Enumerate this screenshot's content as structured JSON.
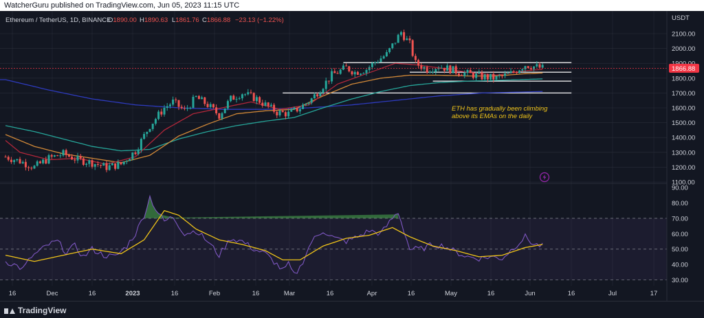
{
  "header": {
    "published_by": "WatcherGuru published on TradingView.com, Jun 05, 2023 11:15 UTC"
  },
  "brand": {
    "name": "TradingView"
  },
  "legend": {
    "symbol": "Ethereum / TetherUS, 1D, BINANCE",
    "O_label": "O",
    "O": "1890.00",
    "H_label": "H",
    "H": "1890.63",
    "L_label": "L",
    "L": "1861.76",
    "C_label": "C",
    "C": "1866.88",
    "change": "−23.13 (−1.22%)"
  },
  "colors": {
    "bg": "#131722",
    "grid": "#2a2e39",
    "text": "#d1d4dc",
    "up": "#26a69a",
    "down": "#ef5350",
    "ema_red": "#b2273a",
    "ema_orange": "#d48a38",
    "ema_teal": "#26a69a",
    "ema_blue": "#2e3bbf",
    "rsi": "#7e57c2",
    "rsi_ma": "#f0c419",
    "annotation": "#f0c419",
    "price_tag": "#f23645",
    "rsi_band": "#7e57c2"
  },
  "chart_data": {
    "type": "candlestick",
    "currency": "USDT",
    "price_axis": {
      "ylim": [
        1100,
        2200
      ],
      "ticks": [
        "2100.00",
        "2000.00",
        "1900.00",
        "1800.00",
        "1700.00",
        "1600.00",
        "1500.00",
        "1400.00",
        "1300.00",
        "1200.00",
        "1100.00"
      ]
    },
    "rsi_axis": {
      "ylim": [
        28,
        90
      ],
      "ticks": [
        "90.00",
        "80.00",
        "70.00",
        "60.00",
        "50.00",
        "40.00",
        "30.00"
      ]
    },
    "last_price": "1866.88",
    "x_ticks": [
      "16",
      "Dec",
      "16",
      "2023",
      "16",
      "Feb",
      "16",
      "Mar",
      "16",
      "Apr",
      "16",
      "May",
      "16",
      "Jun",
      "16",
      "Jul",
      "17"
    ],
    "annotation": [
      "ETH has gradually been climbing",
      "above its EMAs on the daily"
    ],
    "anchors": {
      "close": [
        [
          0,
          1270
        ],
        [
          5,
          1240
        ],
        [
          10,
          1200
        ],
        [
          15,
          1260
        ],
        [
          20,
          1290
        ],
        [
          25,
          1250
        ],
        [
          30,
          1230
        ],
        [
          35,
          1200
        ],
        [
          40,
          1220
        ],
        [
          45,
          1310
        ],
        [
          50,
          1480
        ],
        [
          55,
          1600
        ],
        [
          58,
          1640
        ],
        [
          62,
          1580
        ],
        [
          66,
          1670
        ],
        [
          70,
          1620
        ],
        [
          74,
          1550
        ],
        [
          78,
          1660
        ],
        [
          82,
          1700
        ],
        [
          87,
          1660
        ],
        [
          90,
          1620
        ],
        [
          94,
          1570
        ],
        [
          98,
          1560
        ],
        [
          102,
          1600
        ],
        [
          106,
          1660
        ],
        [
          110,
          1750
        ],
        [
          113,
          1820
        ],
        [
          118,
          1870
        ],
        [
          121,
          1840
        ],
        [
          125,
          1860
        ],
        [
          128,
          1910
        ],
        [
          132,
          1960
        ],
        [
          137,
          2110
        ],
        [
          140,
          2030
        ],
        [
          142,
          1900
        ],
        [
          146,
          1860
        ],
        [
          150,
          1880
        ],
        [
          154,
          1860
        ],
        [
          157,
          1840
        ],
        [
          160,
          1830
        ],
        [
          165,
          1810
        ],
        [
          170,
          1800
        ],
        [
          175,
          1830
        ],
        [
          180,
          1890
        ],
        [
          184,
          1875
        ],
        [
          186,
          1867
        ]
      ],
      "ema_fast": [
        [
          0,
          1380
        ],
        [
          5,
          1300
        ],
        [
          15,
          1250
        ],
        [
          25,
          1260
        ],
        [
          35,
          1220
        ],
        [
          45,
          1270
        ],
        [
          55,
          1450
        ],
        [
          65,
          1560
        ],
        [
          75,
          1600
        ],
        [
          85,
          1640
        ],
        [
          95,
          1590
        ],
        [
          105,
          1620
        ],
        [
          115,
          1760
        ],
        [
          125,
          1830
        ],
        [
          135,
          1900
        ],
        [
          142,
          1890
        ],
        [
          150,
          1870
        ],
        [
          160,
          1840
        ],
        [
          170,
          1820
        ],
        [
          180,
          1850
        ],
        [
          186,
          1860
        ]
      ],
      "ema_mid": [
        [
          0,
          1420
        ],
        [
          10,
          1340
        ],
        [
          20,
          1290
        ],
        [
          30,
          1260
        ],
        [
          40,
          1230
        ],
        [
          50,
          1280
        ],
        [
          60,
          1410
        ],
        [
          70,
          1490
        ],
        [
          80,
          1560
        ],
        [
          90,
          1580
        ],
        [
          100,
          1590
        ],
        [
          110,
          1680
        ],
        [
          120,
          1760
        ],
        [
          130,
          1800
        ],
        [
          140,
          1820
        ],
        [
          150,
          1820
        ],
        [
          160,
          1815
        ],
        [
          170,
          1815
        ],
        [
          180,
          1830
        ],
        [
          186,
          1835
        ]
      ],
      "ema_slow": [
        [
          0,
          1480
        ],
        [
          10,
          1440
        ],
        [
          20,
          1390
        ],
        [
          30,
          1340
        ],
        [
          40,
          1310
        ],
        [
          50,
          1320
        ],
        [
          60,
          1390
        ],
        [
          70,
          1440
        ],
        [
          80,
          1480
        ],
        [
          90,
          1510
        ],
        [
          100,
          1535
        ],
        [
          110,
          1600
        ],
        [
          120,
          1660
        ],
        [
          130,
          1710
        ],
        [
          140,
          1750
        ],
        [
          150,
          1770
        ],
        [
          160,
          1780
        ],
        [
          170,
          1785
        ],
        [
          186,
          1795
        ]
      ],
      "ema_longest": [
        [
          0,
          1790
        ],
        [
          15,
          1720
        ],
        [
          30,
          1660
        ],
        [
          45,
          1620
        ],
        [
          60,
          1600
        ],
        [
          75,
          1590
        ],
        [
          90,
          1590
        ],
        [
          105,
          1600
        ],
        [
          120,
          1620
        ],
        [
          135,
          1650
        ],
        [
          150,
          1680
        ],
        [
          165,
          1700
        ],
        [
          186,
          1710
        ]
      ],
      "rsi": [
        [
          0,
          42
        ],
        [
          3,
          40
        ],
        [
          6,
          37
        ],
        [
          9,
          45
        ],
        [
          12,
          49
        ],
        [
          15,
          53
        ],
        [
          18,
          55
        ],
        [
          21,
          48
        ],
        [
          24,
          52
        ],
        [
          27,
          45
        ],
        [
          30,
          50
        ],
        [
          34,
          46
        ],
        [
          38,
          45
        ],
        [
          42,
          52
        ],
        [
          45,
          60
        ],
        [
          48,
          72
        ],
        [
          50,
          84
        ],
        [
          52,
          76
        ],
        [
          55,
          68
        ],
        [
          58,
          71
        ],
        [
          62,
          60
        ],
        [
          66,
          62
        ],
        [
          70,
          55
        ],
        [
          74,
          46
        ],
        [
          78,
          57
        ],
        [
          82,
          55
        ],
        [
          86,
          50
        ],
        [
          90,
          47
        ],
        [
          94,
          40
        ],
        [
          96,
          36
        ],
        [
          98,
          40
        ],
        [
          100,
          33
        ],
        [
          102,
          38
        ],
        [
          106,
          55
        ],
        [
          110,
          62
        ],
        [
          114,
          57
        ],
        [
          118,
          55
        ],
        [
          122,
          58
        ],
        [
          126,
          62
        ],
        [
          130,
          60
        ],
        [
          134,
          70
        ],
        [
          136,
          74
        ],
        [
          138,
          62
        ],
        [
          140,
          50
        ],
        [
          144,
          50
        ],
        [
          148,
          53
        ],
        [
          152,
          52
        ],
        [
          156,
          48
        ],
        [
          160,
          45
        ],
        [
          164,
          44
        ],
        [
          168,
          45
        ],
        [
          172,
          44
        ],
        [
          176,
          51
        ],
        [
          180,
          58
        ],
        [
          183,
          53
        ],
        [
          186,
          52
        ]
      ],
      "rsi_ma": [
        [
          0,
          46
        ],
        [
          10,
          42
        ],
        [
          20,
          46
        ],
        [
          30,
          50
        ],
        [
          40,
          47
        ],
        [
          48,
          56
        ],
        [
          55,
          75
        ],
        [
          60,
          72
        ],
        [
          66,
          63
        ],
        [
          74,
          56
        ],
        [
          82,
          53
        ],
        [
          90,
          49
        ],
        [
          96,
          43
        ],
        [
          102,
          43
        ],
        [
          110,
          52
        ],
        [
          118,
          57
        ],
        [
          126,
          59
        ],
        [
          134,
          64
        ],
        [
          140,
          58
        ],
        [
          148,
          52
        ],
        [
          156,
          49
        ],
        [
          164,
          45
        ],
        [
          172,
          46
        ],
        [
          180,
          51
        ],
        [
          186,
          53
        ]
      ]
    },
    "levels": [
      {
        "from": 117,
        "to": 196,
        "value": 1905,
        "color": "#ffffff"
      },
      {
        "from": 140,
        "to": 196,
        "value": 1840,
        "color": "#ffffff"
      },
      {
        "from": 148,
        "to": 196,
        "value": 1780,
        "color": "#ffffff"
      },
      {
        "from": 96,
        "to": 196,
        "value": 1700,
        "color": "#ffffff"
      }
    ]
  }
}
